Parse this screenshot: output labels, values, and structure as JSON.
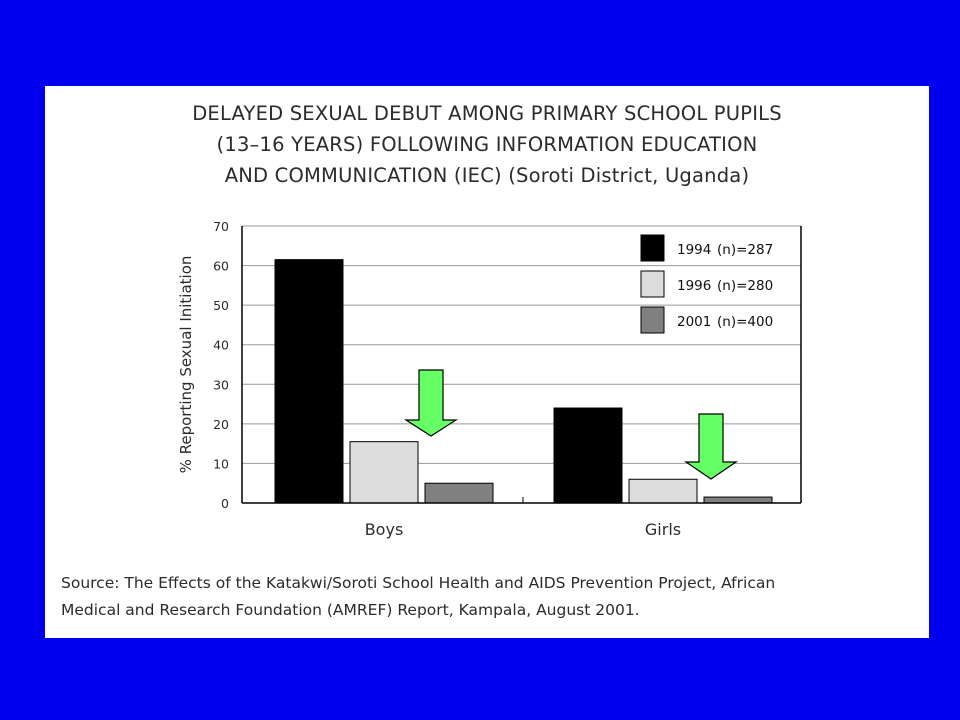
{
  "slide": {
    "background_color": "#0000ee",
    "panel_color": "#ffffff",
    "arrow_color": "#66ff66",
    "arrows": [
      "down-arrow-boys",
      "down-arrow-girls"
    ]
  },
  "chart_data": {
    "type": "bar",
    "title_lines": [
      "DELAYED SEXUAL DEBUT AMONG PRIMARY SCHOOL PUPILS",
      "(13–16 YEARS) FOLLOWING INFORMATION EDUCATION",
      "AND COMMUNICATION (IEC) (Soroti District, Uganda)"
    ],
    "categories": [
      "Boys",
      "Girls"
    ],
    "ylabel": "% Reporting Sexual Initiation",
    "ylim": [
      0,
      70
    ],
    "yticks": [
      0,
      10,
      20,
      30,
      40,
      50,
      60,
      70
    ],
    "grid": true,
    "legend_position": "top-right",
    "series": [
      {
        "name": "1994 (n)=287",
        "year": "1994",
        "n_label": "(n)=287",
        "color": "#000000",
        "values": [
          61.5,
          24
        ]
      },
      {
        "name": "1996 (n)=280",
        "year": "1996",
        "n_label": "(n)=280",
        "color": "#dcdcdc",
        "values": [
          15.5,
          6
        ]
      },
      {
        "name": "2001 (n)=400",
        "year": "2001",
        "n_label": "(n)=400",
        "color": "#808080",
        "values": [
          5,
          1.5
        ]
      }
    ],
    "source_lines": [
      "Source: The Effects of the Katakwi/Soroti School Health and AIDS Prevention Project, African",
      "Medical and Research Foundation (AMREF) Report, Kampala, August 2001."
    ]
  }
}
